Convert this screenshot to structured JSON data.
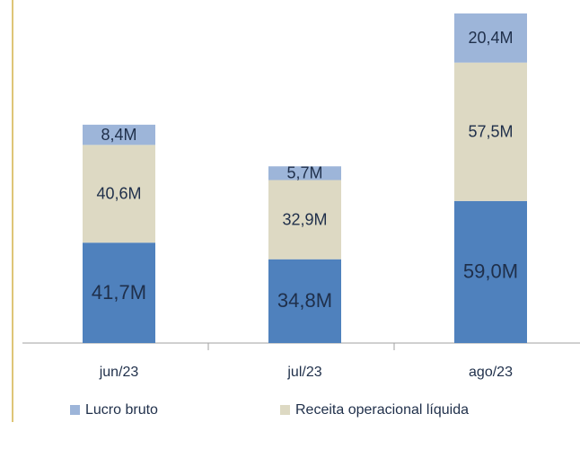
{
  "chart_data": {
    "type": "stacked_bar",
    "categories": [
      "jun/23",
      "jul/23",
      "ago/23"
    ],
    "series": [
      {
        "color": "#4f81bd",
        "values": [
          41.7,
          34.8,
          59.0
        ],
        "value_labels": [
          "41,7M",
          "34,8M",
          "59,0M"
        ]
      },
      {
        "name": "Receita operacional líquida",
        "color": "#ddd9c3",
        "values": [
          40.6,
          32.9,
          57.5
        ],
        "value_labels": [
          "40,6M",
          "32,9M",
          "57,5M"
        ]
      },
      {
        "name": "Lucro bruto",
        "color": "#9db5d9",
        "values": [
          8.4,
          5.7,
          20.4
        ],
        "value_labels": [
          "8,4M",
          "5,7M",
          "20,4M"
        ]
      }
    ],
    "legend": "bottom"
  }
}
